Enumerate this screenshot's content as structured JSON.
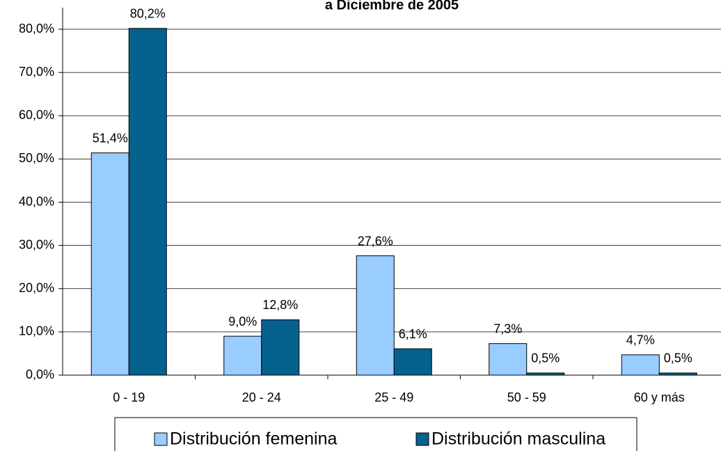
{
  "chart_data": {
    "type": "bar",
    "title": "a Diciembre de 2005",
    "categories": [
      "0 - 19",
      "20 - 24",
      "25 - 49",
      "50 - 59",
      "60 y más"
    ],
    "series": [
      {
        "name": "Distribución femenina",
        "color": "#99ccff",
        "values": [
          51.4,
          9.0,
          27.6,
          7.3,
          4.7
        ],
        "value_labels": [
          "51,4%",
          "9,0%",
          "27,6%",
          "7,3%",
          "4,7%"
        ]
      },
      {
        "name": "Distribución masculina",
        "color": "#05618e",
        "values": [
          80.2,
          12.8,
          6.1,
          0.5,
          0.5
        ],
        "value_labels": [
          "80,2%",
          "12,8%",
          "6,1%",
          "0,5%",
          "0,5%"
        ]
      }
    ],
    "ylim": [
      0,
      85
    ],
    "yticks": [
      {
        "value": 0,
        "label": "0,0%"
      },
      {
        "value": 10,
        "label": "10,0%"
      },
      {
        "value": 20,
        "label": "20,0%"
      },
      {
        "value": 30,
        "label": "30,0%"
      },
      {
        "value": 40,
        "label": "40,0%"
      },
      {
        "value": 50,
        "label": "50,0%"
      },
      {
        "value": 60,
        "label": "60,0%"
      },
      {
        "value": 70,
        "label": "70,0%"
      },
      {
        "value": 80,
        "label": "80,0%"
      }
    ],
    "grid": true,
    "legend": "bottom"
  }
}
